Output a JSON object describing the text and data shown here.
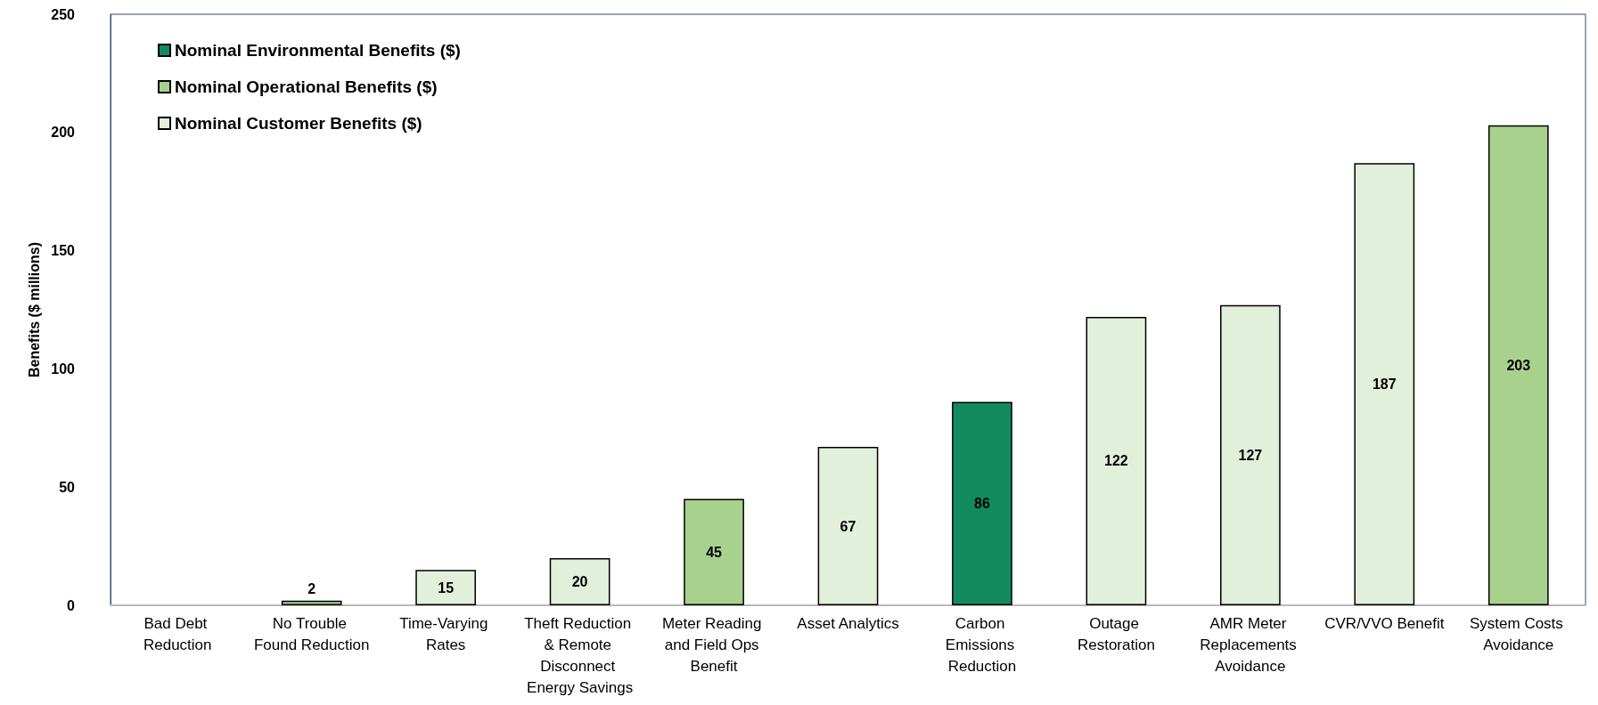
{
  "chart_data": {
    "type": "bar",
    "ylabel": "Benefits ($ millions)",
    "categories": [
      "Bad Debt Reduction",
      "No Trouble Found Reduction",
      "Time-Varying Rates",
      "Theft Reduction & Remote Disconnect Energy Savings",
      "Meter Reading and Field Ops Benefit",
      "Asset Analytics",
      "Carbon Emissions Reduction",
      "Outage Restoration",
      "AMR Meter Replacements Avoidance",
      "CVR/VVO Benefit",
      "System Costs Avoidance"
    ],
    "series": [
      {
        "name": "Nominal Environmental Benefits ($)",
        "color": "#128a60",
        "values": [
          null,
          null,
          null,
          null,
          null,
          null,
          86,
          null,
          null,
          null,
          null
        ],
        "value_labels": [
          null,
          null,
          null,
          null,
          null,
          null,
          "86",
          null,
          null,
          null,
          null
        ]
      },
      {
        "name": "Nominal Operational Benefits ($)",
        "color": "#a9d18e",
        "values": [
          null,
          2,
          null,
          null,
          45,
          null,
          null,
          null,
          null,
          null,
          203
        ],
        "value_labels": [
          null,
          "2",
          null,
          null,
          "45",
          null,
          null,
          null,
          null,
          null,
          "203"
        ]
      },
      {
        "name": "Nominal Customer Benefits ($)",
        "color": "#e2efda",
        "values": [
          null,
          null,
          15,
          20,
          null,
          67,
          null,
          122,
          127,
          187,
          null
        ],
        "value_labels": [
          null,
          null,
          "15",
          "20",
          null,
          "67",
          null,
          "122",
          "127",
          "187",
          null
        ]
      }
    ],
    "stacked": true,
    "ylim": [
      0,
      250
    ],
    "yticks": [
      0,
      50,
      100,
      150,
      200,
      250
    ],
    "grid": false,
    "legend": "top left"
  }
}
